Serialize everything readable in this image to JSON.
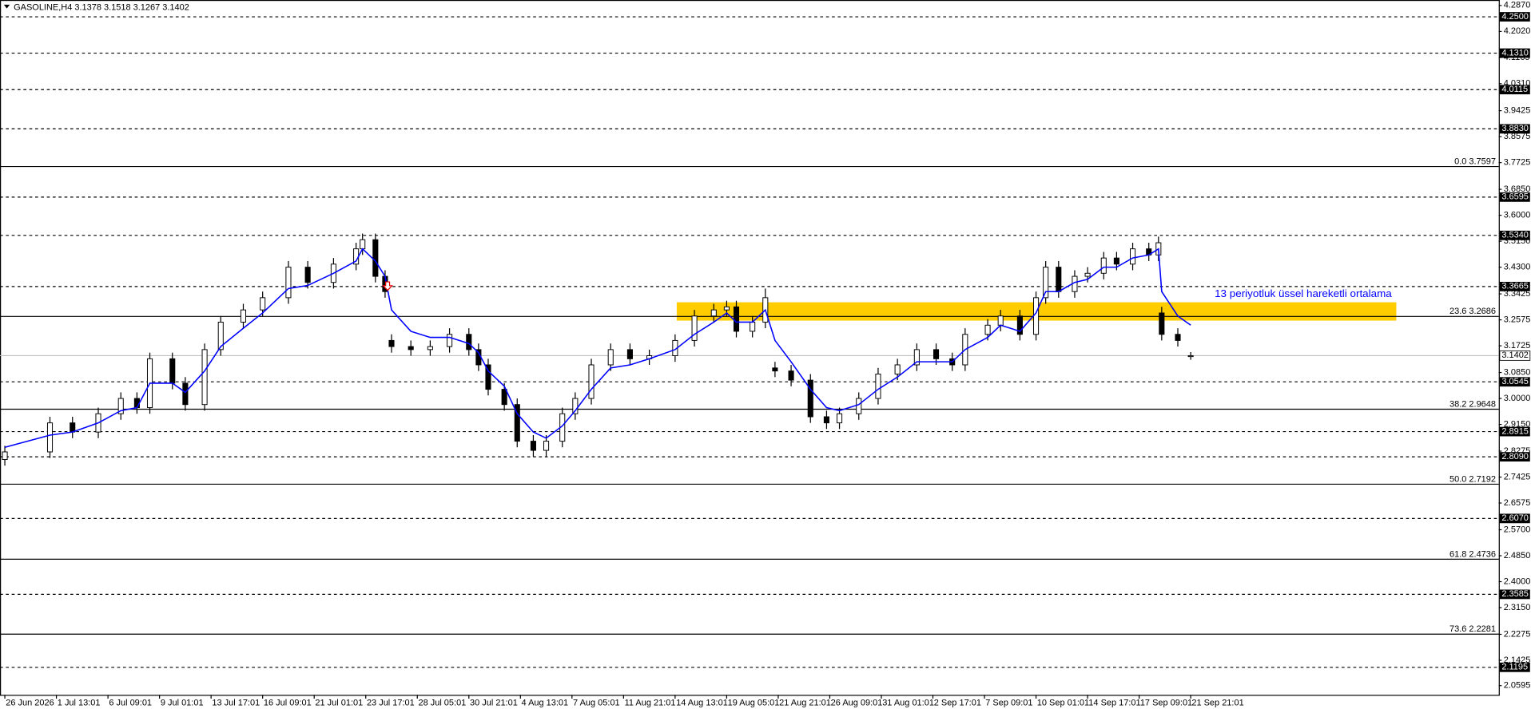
{
  "chart_data": {
    "type": "candlestick",
    "title": "GASOLINE,H4  3.1378 3.1518 3.1267 3.1402",
    "annotation": "13 periyotluk üssel hareketli ortalama",
    "xlim": [
      -1.5,
      463.6
    ],
    "ylim": [
      2.02,
      4.305
    ],
    "xticks": [
      {
        "value": 0,
        "label": "26 Jun 2026"
      },
      {
        "value": 16,
        "label": "1 Jul 13:01"
      },
      {
        "value": 32,
        "label": "6 Jul 09:01"
      },
      {
        "value": 48,
        "label": "9 Jul 01:01"
      },
      {
        "value": 64,
        "label": "13 Jul 17:01"
      },
      {
        "value": 80,
        "label": "16 Jul 09:01"
      },
      {
        "value": 96,
        "label": "21 Jul 01:01"
      },
      {
        "value": 112,
        "label": "23 Jul 17:01"
      },
      {
        "value": 128,
        "label": "28 Jul 05:01"
      },
      {
        "value": 144,
        "label": "30 Jul 21:01"
      },
      {
        "value": 160,
        "label": "4 Aug 13:01"
      },
      {
        "value": 176,
        "label": "7 Aug 05:01"
      },
      {
        "value": 192,
        "label": "11 Aug 21:01"
      },
      {
        "value": 208,
        "label": "14 Aug 13:01"
      },
      {
        "value": 224,
        "label": "19 Aug 05:01"
      },
      {
        "value": 240,
        "label": "21 Aug 21:01"
      },
      {
        "value": 256,
        "label": "26 Aug 09:01"
      },
      {
        "value": 272,
        "label": "31 Aug 01:01"
      },
      {
        "value": 288,
        "label": "2 Sep 17:01"
      },
      {
        "value": 304,
        "label": "7 Sep 09:01"
      },
      {
        "value": 320,
        "label": "10 Sep 01:01"
      },
      {
        "value": 336,
        "label": "14 Sep 17:01"
      },
      {
        "value": 352,
        "label": "17 Sep 09:01"
      },
      {
        "value": 368,
        "label": "21 Sep 21:01"
      }
    ],
    "yticks": [
      {
        "value": 4.287,
        "label": "4.2870"
      },
      {
        "value": 4.202,
        "label": "4.2020"
      },
      4.1165,
      {
        "value": 4.031,
        "label": "4.0310"
      },
      3.9425,
      3.8575,
      3.7725,
      {
        "value": 3.685,
        "label": "3.6850"
      },
      {
        "value": 3.6,
        "label": "3.6000"
      },
      {
        "value": 3.515,
        "label": "3.5150"
      },
      {
        "value": 3.43,
        "label": "3.4300"
      },
      3.3425,
      3.2575,
      3.1725,
      {
        "value": 3.085,
        "label": "3.0850"
      },
      {
        "value": 3.0,
        "label": "3.0000"
      },
      {
        "value": 2.915,
        "label": "2.9150"
      },
      2.8275,
      2.7425,
      2.6575,
      {
        "value": 2.57,
        "label": "2.5700"
      },
      {
        "value": 2.485,
        "label": "2.4850"
      },
      {
        "value": 2.4,
        "label": "2.4000"
      },
      {
        "value": 2.315,
        "label": "2.3150"
      },
      2.2275,
      2.1425,
      2.0595
    ],
    "levels": [
      {
        "value": 4.25,
        "label": "4.2500"
      },
      {
        "value": 4.131,
        "label": "4.1310"
      },
      {
        "value": 4.0115,
        "label": "4.0115"
      },
      {
        "value": 3.883,
        "label": "3.8830"
      },
      {
        "value": 3.6595,
        "label": "3.6595"
      },
      {
        "value": 3.534,
        "label": "3.5340"
      },
      {
        "value": 3.3665,
        "label": "3.3665"
      },
      {
        "value": 3.0545,
        "label": "3.0545"
      },
      {
        "value": 2.8915,
        "label": "2.8915"
      },
      {
        "value": 2.809,
        "label": "2.8090"
      },
      {
        "value": 2.607,
        "label": "2.6070"
      },
      {
        "value": 2.3585,
        "label": "2.3585"
      },
      {
        "value": 2.1195,
        "label": "2.1195"
      }
    ],
    "fib_levels": [
      {
        "value": 3.7597,
        "label": "0.0 3.7597"
      },
      {
        "value": 3.2686,
        "label": "23.6 3.2686"
      },
      {
        "value": 2.9648,
        "label": "38.2 2.9648"
      },
      {
        "value": 2.7192,
        "label": "50.0 2.7192"
      },
      {
        "value": 2.4736,
        "label": "61.8 2.4736"
      },
      {
        "value": 2.2281,
        "label": "73.6 2.2281"
      }
    ],
    "current_price": {
      "value": 3.1402,
      "label": "3.1402"
    },
    "zone": {
      "x": [
        208.5,
        431.8
      ],
      "y": [
        3.255,
        3.315
      ],
      "color": "#ffcc00"
    },
    "x": [
      0,
      14,
      21,
      29,
      36,
      41,
      45,
      52,
      56,
      62,
      67,
      74,
      80,
      88,
      94,
      102,
      109,
      111,
      115,
      118,
      120,
      126,
      132,
      138,
      144,
      147,
      150,
      155,
      159,
      164,
      168,
      173,
      177,
      182,
      188,
      194,
      200,
      208,
      214,
      220,
      224,
      227,
      232,
      236,
      239,
      244,
      250,
      255,
      259,
      265,
      271,
      277,
      283,
      289,
      294,
      298,
      305,
      309,
      315,
      320,
      323,
      327,
      332,
      336,
      341,
      345,
      350,
      355,
      358,
      359,
      364,
      368
    ],
    "open": [
      2.8,
      2.825,
      2.92,
      2.89,
      2.95,
      3.0,
      2.97,
      3.13,
      3.05,
      2.98,
      3.16,
      3.25,
      3.29,
      3.33,
      3.43,
      3.38,
      3.44,
      3.49,
      3.52,
      3.4,
      3.19,
      3.17,
      3.16,
      3.17,
      3.21,
      3.16,
      3.11,
      3.03,
      2.98,
      2.86,
      2.83,
      2.86,
      2.95,
      3.0,
      3.11,
      3.16,
      3.13,
      3.14,
      3.19,
      3.27,
      3.29,
      3.3,
      3.22,
      3.25,
      3.1,
      3.09,
      3.06,
      2.94,
      2.92,
      2.95,
      3.0,
      3.08,
      3.11,
      3.16,
      3.13,
      3.11,
      3.21,
      3.24,
      3.27,
      3.21,
      3.33,
      3.43,
      3.35,
      3.4,
      3.41,
      3.46,
      3.44,
      3.49,
      3.47,
      3.28,
      3.21,
      3.1378
    ],
    "high": [
      2.845,
      2.94,
      2.94,
      2.97,
      3.02,
      3.02,
      3.15,
      3.15,
      3.07,
      3.18,
      3.27,
      3.31,
      3.35,
      3.45,
      3.45,
      3.46,
      3.51,
      3.54,
      3.54,
      3.42,
      3.21,
      3.19,
      3.19,
      3.23,
      3.23,
      3.18,
      3.13,
      3.05,
      3.0,
      2.88,
      2.88,
      2.97,
      3.02,
      3.13,
      3.18,
      3.18,
      3.16,
      3.21,
      3.29,
      3.31,
      3.32,
      3.32,
      3.27,
      3.36,
      3.12,
      3.11,
      3.08,
      2.96,
      2.97,
      3.02,
      3.1,
      3.13,
      3.18,
      3.18,
      3.15,
      3.23,
      3.26,
      3.29,
      3.29,
      3.35,
      3.45,
      3.45,
      3.42,
      3.43,
      3.48,
      3.48,
      3.51,
      3.51,
      3.53,
      3.3,
      3.23,
      3.1518
    ],
    "low": [
      2.78,
      2.805,
      2.87,
      2.87,
      2.93,
      2.95,
      2.95,
      3.03,
      2.96,
      2.96,
      3.14,
      3.23,
      3.27,
      3.31,
      3.36,
      3.36,
      3.42,
      3.47,
      3.38,
      3.33,
      3.15,
      3.14,
      3.14,
      3.15,
      3.14,
      3.09,
      3.01,
      2.96,
      2.84,
      2.81,
      2.81,
      2.84,
      2.93,
      2.98,
      3.09,
      3.11,
      3.11,
      3.12,
      3.17,
      3.25,
      3.27,
      3.2,
      3.2,
      3.23,
      3.07,
      3.04,
      2.92,
      2.9,
      2.9,
      2.93,
      2.98,
      3.06,
      3.09,
      3.11,
      3.09,
      3.09,
      3.19,
      3.22,
      3.19,
      3.19,
      3.31,
      3.33,
      3.33,
      3.38,
      3.39,
      3.42,
      3.42,
      3.45,
      3.45,
      3.19,
      3.17,
      3.1267
    ],
    "close": [
      2.825,
      2.92,
      2.89,
      2.95,
      3.0,
      2.97,
      3.13,
      3.05,
      2.98,
      3.16,
      3.25,
      3.29,
      3.33,
      3.43,
      3.38,
      3.44,
      3.49,
      3.52,
      3.4,
      3.35,
      3.17,
      3.16,
      3.17,
      3.21,
      3.16,
      3.11,
      3.03,
      2.98,
      2.86,
      2.83,
      2.86,
      2.95,
      3.0,
      3.11,
      3.16,
      3.13,
      3.14,
      3.19,
      3.27,
      3.29,
      3.3,
      3.22,
      3.25,
      3.33,
      3.09,
      3.06,
      2.94,
      2.92,
      2.95,
      3.0,
      3.08,
      3.11,
      3.16,
      3.13,
      3.11,
      3.21,
      3.24,
      3.27,
      3.21,
      3.33,
      3.43,
      3.35,
      3.4,
      3.41,
      3.46,
      3.44,
      3.49,
      3.47,
      3.51,
      3.21,
      3.19,
      3.1402
    ],
    "ema": {
      "color": "#0000ff",
      "values": [
        2.84,
        2.88,
        2.89,
        2.92,
        2.96,
        2.97,
        3.05,
        3.05,
        3.02,
        3.09,
        3.17,
        3.23,
        3.28,
        3.36,
        3.37,
        3.41,
        3.45,
        3.49,
        3.45,
        3.4,
        3.29,
        3.22,
        3.2,
        3.2,
        3.18,
        3.15,
        3.09,
        3.04,
        2.95,
        2.89,
        2.87,
        2.91,
        2.96,
        3.03,
        3.1,
        3.11,
        3.13,
        3.16,
        3.21,
        3.25,
        3.28,
        3.25,
        3.25,
        3.29,
        3.19,
        3.12,
        3.03,
        2.97,
        2.96,
        2.98,
        3.03,
        3.07,
        3.12,
        3.12,
        3.12,
        3.16,
        3.2,
        3.24,
        3.22,
        3.28,
        3.35,
        3.35,
        3.38,
        3.39,
        3.43,
        3.43,
        3.46,
        3.47,
        3.49,
        3.35,
        3.27,
        3.24
      ]
    }
  }
}
